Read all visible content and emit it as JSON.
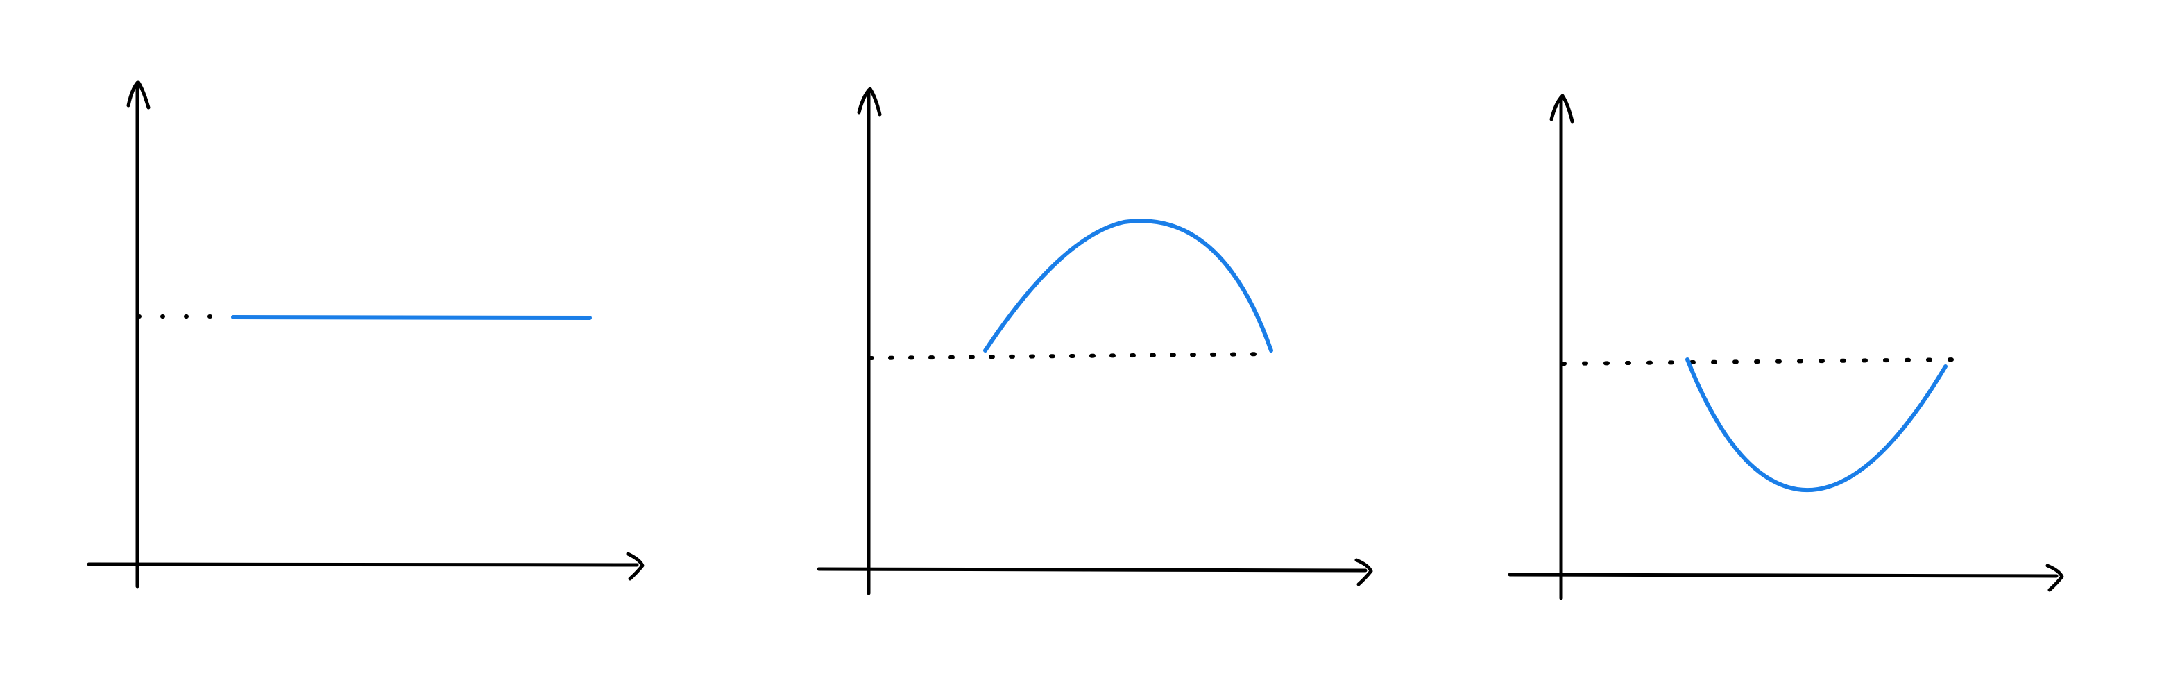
{
  "colors": {
    "axis": "#000000",
    "curve": "#1a7ee8",
    "guide": "#000000",
    "background": "#ffffff"
  },
  "panels": [
    {
      "id": "panel-1",
      "curve_shape": "horizontal-line",
      "guide_style": "dotted"
    },
    {
      "id": "panel-2",
      "curve_shape": "arch-above-baseline",
      "guide_style": "dotted"
    },
    {
      "id": "panel-3",
      "curve_shape": "arch-below-baseline",
      "guide_style": "dotted"
    }
  ]
}
